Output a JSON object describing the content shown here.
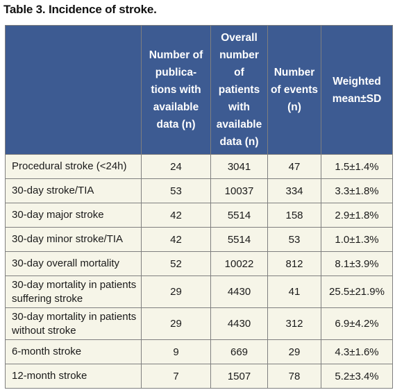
{
  "title": "Table 3. Incidence of stroke.",
  "table": {
    "headers": [
      "",
      "Number of publica-tions with available data (n)",
      "Overall number of patients with available data (n)",
      "Number of events (n)",
      "Weighted mean±SD"
    ],
    "header_lines": [
      [],
      [
        "Number of",
        "publica-",
        "tions with",
        "available",
        "data (n)"
      ],
      [
        "Overall",
        "number",
        "of",
        "patients",
        "with",
        "available",
        "data (n)"
      ],
      [
        "Number",
        "of events",
        "(n)"
      ],
      [
        "Weighted",
        "mean±SD"
      ]
    ],
    "rows": [
      {
        "label": "Procedural stroke (<24h)",
        "publications": "24",
        "patients": "3041",
        "events": "47",
        "mean_sd": "1.5±1.4%"
      },
      {
        "label": "30-day stroke/TIA",
        "publications": "53",
        "patients": "10037",
        "events": "334",
        "mean_sd": "3.3±1.8%"
      },
      {
        "label": "30-day major stroke",
        "publications": "42",
        "patients": "5514",
        "events": "158",
        "mean_sd": "2.9±1.8%"
      },
      {
        "label": "30-day minor stroke/TIA",
        "publications": "42",
        "patients": "5514",
        "events": "53",
        "mean_sd": "1.0±1.3%"
      },
      {
        "label": "30-day overall mortality",
        "publications": "52",
        "patients": "10022",
        "events": "812",
        "mean_sd": "8.1±3.9%"
      },
      {
        "label_lines": [
          "30-day mortality in patients",
          "suffering stroke"
        ],
        "publications": "29",
        "patients": "4430",
        "events": "41",
        "mean_sd": "25.5±21.9%"
      },
      {
        "label_lines": [
          "30-day mortality in patients",
          "without stroke"
        ],
        "publications": "29",
        "patients": "4430",
        "events": "312",
        "mean_sd": "6.9±4.2%"
      },
      {
        "label": "6-month stroke",
        "publications": "9",
        "patients": "669",
        "events": "29",
        "mean_sd": "4.3±1.6%"
      },
      {
        "label": "12-month stroke",
        "publications": "7",
        "patients": "1507",
        "events": "78",
        "mean_sd": "5.2±3.4%"
      }
    ]
  },
  "colors": {
    "header_bg": "#3d5b92",
    "header_text": "#ffffff",
    "body_bg": "#f6f5e8",
    "border": "#7f7f7f"
  }
}
